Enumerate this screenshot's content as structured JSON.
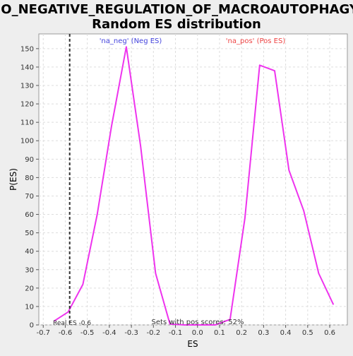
{
  "chart_data": {
    "type": "line",
    "title": "GO_NEGATIVE_REGULATION_OF_MACROAUTOPHAGY:",
    "subtitle": "Random ES distribution",
    "xlabel": "ES",
    "ylabel": "P(ES)",
    "xlim": [
      -0.72,
      0.68
    ],
    "ylim": [
      0,
      158
    ],
    "x_ticks": [
      -0.7,
      -0.6,
      -0.5,
      -0.4,
      -0.3,
      -0.2,
      -0.1,
      0.0,
      0.1,
      0.2,
      0.3,
      0.4,
      0.5,
      0.6
    ],
    "x_tick_labels": [
      "-0.7",
      "-0.6",
      "-0.5",
      "-0.4",
      "-0.3",
      "-0.2",
      "-0.1",
      "0.0",
      "0.1",
      "0.2",
      "0.3",
      "0.4",
      "0.5",
      "0.6"
    ],
    "y_ticks": [
      0,
      10,
      20,
      30,
      40,
      50,
      60,
      70,
      80,
      90,
      100,
      110,
      120,
      130,
      140,
      150
    ],
    "y_tick_labels": [
      "0",
      "10",
      "20",
      "30",
      "40",
      "50",
      "60",
      "70",
      "80",
      "90",
      "100",
      "110",
      "120",
      "130",
      "140",
      "150"
    ],
    "grid": true,
    "series": [
      {
        "color": "#ee33ee",
        "x": [
          -0.652,
          -0.587,
          -0.52,
          -0.455,
          -0.39,
          -0.323,
          -0.258,
          -0.19,
          -0.125,
          -0.06,
          0.007,
          0.08,
          0.148,
          0.215,
          0.282,
          0.35,
          0.415,
          0.482,
          0.55,
          0.617
        ],
        "y": [
          2,
          7,
          22,
          60,
          108,
          151,
          97,
          28,
          0.5,
          0,
          0,
          0,
          3,
          58,
          141,
          138,
          84,
          62,
          28,
          11
        ]
      }
    ],
    "neg_label": "'na_neg' (Neg ES)",
    "pos_label": "'na_pos' (Pos ES)",
    "neg_label_color": "#4444dd",
    "pos_label_color": "#ee4444",
    "real_es": -0.58,
    "real_es_label": "Real ES -0.6",
    "pos_scores_label": "Sets with pos scores: 52%"
  }
}
